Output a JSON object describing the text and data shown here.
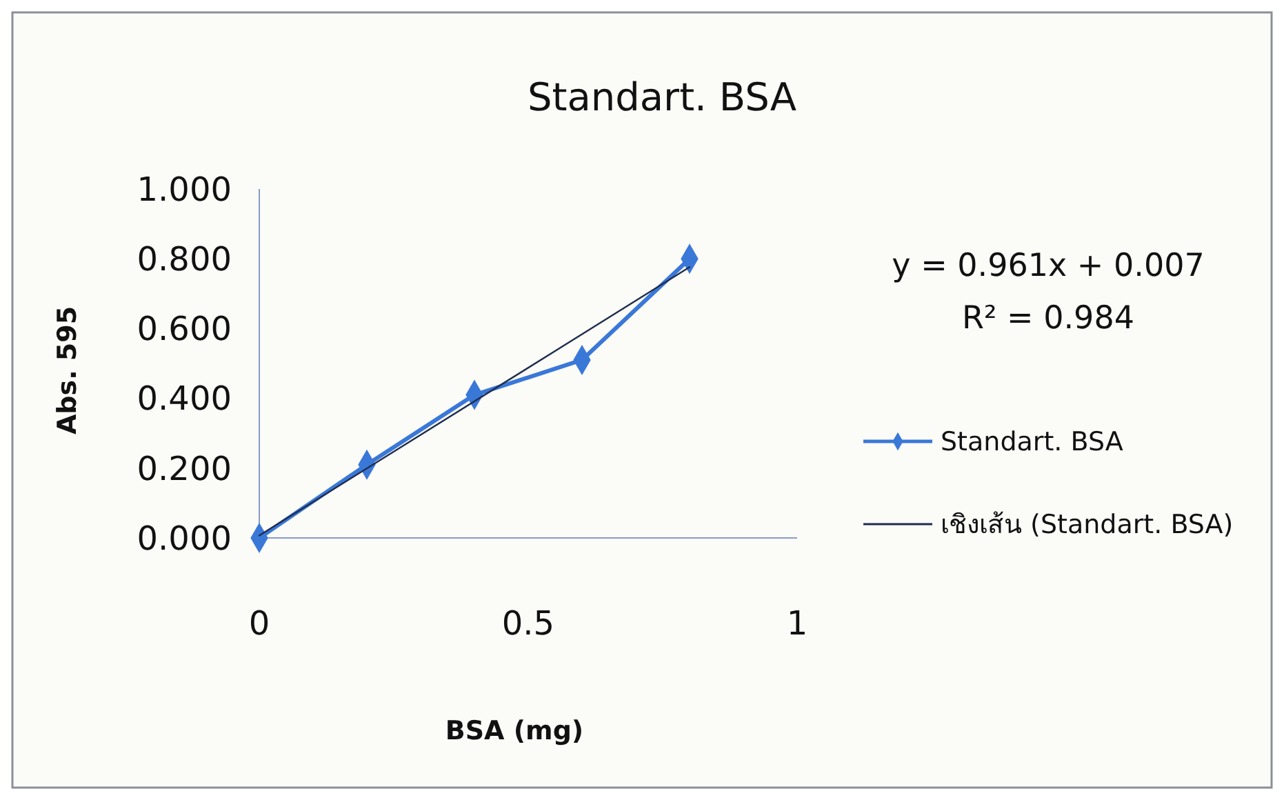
{
  "chart_data": {
    "type": "line",
    "title": "Standart. BSA",
    "xlabel": "BSA (mg)",
    "ylabel": "Abs. 595",
    "xlim": [
      0,
      1
    ],
    "xticks": [
      0,
      0.5,
      1
    ],
    "ylim": [
      0,
      1
    ],
    "yticks": [
      {
        "value": 0,
        "label": "0.000"
      },
      {
        "value": 0.2,
        "label": "0.200"
      },
      {
        "value": 0.4,
        "label": "0.400"
      },
      {
        "value": 0.6,
        "label": "0.600"
      },
      {
        "value": 0.8,
        "label": "0.800"
      },
      {
        "value": 1,
        "label": "1.000"
      }
    ],
    "grid": false,
    "legend": "right",
    "series": [
      {
        "name": "Standart. BSA",
        "color": "#3a78d8",
        "x": [
          0,
          0.2,
          0.4,
          0.6,
          0.8
        ],
        "values": [
          0,
          0.21,
          0.41,
          0.51,
          0.8
        ],
        "marker": "diamond"
      },
      {
        "name": "เชิงเส้น (Standart. BSA)",
        "color": "#1f2d4d",
        "type": "line",
        "x": [
          0,
          0.8
        ],
        "values": [
          0.007,
          0.776
        ],
        "marker": "none"
      }
    ],
    "annotations": [
      "y = 0.961x + 0.007",
      "R² = 0.984"
    ]
  }
}
